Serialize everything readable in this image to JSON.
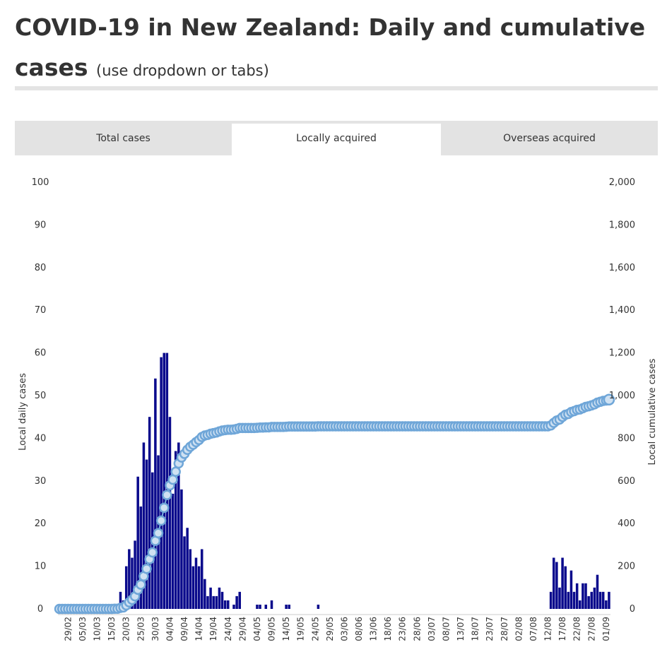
{
  "page": {
    "title": "COVID-19 in New Zealand: Daily and cumulative cases",
    "title_note": "(use dropdown or tabs)"
  },
  "tabs": [
    {
      "label": "Total cases",
      "active": false
    },
    {
      "label": "Locally acquired",
      "active": true
    },
    {
      "label": "Overseas acquired",
      "active": false
    }
  ],
  "colors": {
    "bar": "#0a0a8c",
    "line": "#7aaedb",
    "marker_fill": "#cfe1f2",
    "marker_stroke": "#6fa6d8",
    "tab_bg": "#e3e3e3",
    "text": "#333333"
  },
  "chart_data": {
    "type": "bar+line",
    "start_date": "2020-02-26",
    "ylabel_left": "Local daily cases",
    "ylabel_right": "Local cumulative cases",
    "ylim_left": [
      0,
      100
    ],
    "ylim_right": [
      0,
      2000
    ],
    "yticks_left": [
      0,
      10,
      20,
      30,
      40,
      50,
      60,
      70,
      80,
      90,
      100
    ],
    "yticks_right": [
      "0",
      "200",
      "400",
      "600",
      "800",
      "1,000",
      "1,200",
      "1,400",
      "1,600",
      "1,800",
      "2,000"
    ],
    "xticks": [
      "29/02",
      "05/03",
      "10/03",
      "15/03",
      "20/03",
      "25/03",
      "30/03",
      "04/04",
      "09/04",
      "14/04",
      "19/04",
      "24/04",
      "29/04",
      "04/05",
      "09/05",
      "14/05",
      "19/05",
      "24/05",
      "29/05",
      "03/06",
      "08/06",
      "13/06",
      "18/06",
      "23/06",
      "28/06",
      "03/07",
      "08/07",
      "13/07",
      "18/07",
      "23/07",
      "28/07",
      "02/08",
      "07/08",
      "12/08",
      "17/08",
      "22/08",
      "27/08",
      "01/09"
    ],
    "series": [
      {
        "name": "Local daily cases",
        "kind": "bar",
        "values": [
          0,
          0,
          0,
          0,
          0,
          0,
          0,
          0,
          0,
          0,
          0,
          0,
          0,
          0,
          0,
          0,
          0,
          0,
          0,
          1,
          0,
          4,
          2,
          10,
          14,
          12,
          16,
          31,
          24,
          39,
          35,
          45,
          32,
          54,
          36,
          59,
          60,
          60,
          45,
          27,
          37,
          39,
          28,
          17,
          19,
          14,
          10,
          12,
          10,
          14,
          7,
          3,
          5,
          3,
          3,
          5,
          4,
          2,
          2,
          0,
          1,
          3,
          4,
          0,
          0,
          0,
          0,
          0,
          1,
          1,
          0,
          1,
          0,
          2,
          0,
          0,
          0,
          0,
          1,
          1,
          0,
          0,
          0,
          0,
          0,
          0,
          0,
          0,
          0,
          1,
          0,
          0,
          0,
          0,
          0,
          0,
          0,
          0,
          0,
          0,
          0,
          0,
          0,
          0,
          0,
          0,
          0,
          0,
          0,
          0,
          0,
          0,
          0,
          0,
          0,
          0,
          0,
          0,
          0,
          0,
          0,
          0,
          0,
          0,
          0,
          0,
          0,
          0,
          0,
          0,
          0,
          0,
          0,
          0,
          0,
          0,
          0,
          0,
          0,
          0,
          0,
          0,
          0,
          0,
          0,
          0,
          0,
          0,
          0,
          0,
          0,
          0,
          0,
          0,
          0,
          0,
          0,
          0,
          0,
          0,
          0,
          0,
          0,
          0,
          0,
          0,
          0,
          0,
          0,
          4,
          12,
          11,
          5,
          12,
          10,
          4,
          9,
          4,
          6,
          2,
          6,
          6,
          3,
          4,
          5,
          8,
          4,
          4,
          2,
          4
        ]
      },
      {
        "name": "Local cumulative cases",
        "kind": "line",
        "values": [
          0,
          0,
          0,
          0,
          0,
          0,
          0,
          0,
          0,
          0,
          0,
          0,
          0,
          0,
          0,
          0,
          0,
          0,
          0,
          1,
          1,
          5,
          7,
          17,
          31,
          43,
          59,
          90,
          114,
          153,
          188,
          233,
          265,
          319,
          355,
          414,
          474,
          534,
          579,
          606,
          643,
          682,
          710,
          727,
          746,
          760,
          770,
          782,
          792,
          806,
          813,
          816,
          821,
          824,
          827,
          832,
          836,
          838,
          840,
          840,
          841,
          844,
          848,
          848,
          848,
          848,
          848,
          848,
          849,
          850,
          850,
          851,
          851,
          853,
          853,
          853,
          853,
          853,
          854,
          855,
          855,
          855,
          855,
          855,
          855,
          855,
          855,
          855,
          855,
          856,
          856,
          856,
          856,
          856,
          856,
          856,
          856,
          856,
          856,
          856,
          856,
          856,
          856,
          856,
          856,
          856,
          856,
          856,
          856,
          856,
          856,
          856,
          856,
          856,
          856,
          856,
          856,
          856,
          856,
          856,
          856,
          856,
          856,
          856,
          856,
          856,
          856,
          856,
          856,
          856,
          856,
          856,
          856,
          856,
          856,
          856,
          856,
          856,
          856,
          856,
          856,
          856,
          856,
          856,
          856,
          856,
          856,
          856,
          856,
          856,
          856,
          856,
          856,
          856,
          856,
          856,
          856,
          856,
          856,
          856,
          856,
          856,
          856,
          856,
          856,
          856,
          856,
          856,
          856,
          860,
          872,
          883,
          888,
          900,
          910,
          914,
          923,
          927,
          933,
          935,
          941,
          947,
          950,
          954,
          959,
          967,
          971,
          975,
          977,
          981
        ]
      }
    ]
  }
}
